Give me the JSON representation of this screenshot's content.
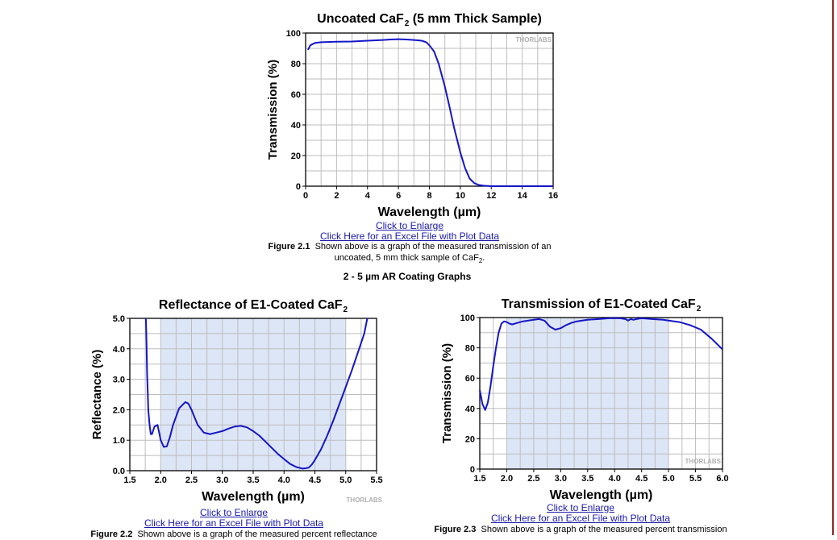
{
  "section_heading": "2 - 5 µm AR Coating Graphs",
  "watermark": "THORLABS",
  "figures": [
    {
      "enlarge_link": "Click to Enlarge",
      "excel_link": "Click Here for an Excel File with Plot Data",
      "caption_label": "Figure 2.1",
      "caption_text_1": "Shown above is a graph of the measured transmission of an",
      "caption_text_2": "uncoated, 5 mm thick sample of CaF",
      "caption_sub": "2",
      "caption_end": "."
    },
    {
      "enlarge_link": "Click to Enlarge",
      "excel_link": "Click Here for an Excel File with Plot Data",
      "caption_label": "Figure 2.2",
      "caption_text_1": "Shown above is a graph of the measured percent reflectance"
    },
    {
      "enlarge_link": "Click to Enlarge",
      "excel_link": "Click Here for an Excel File with Plot Data",
      "caption_label": "Figure 2.3",
      "caption_text_1": "Shown above is a graph of the measured percent transmission"
    }
  ],
  "colors": {
    "line": "#1515c8",
    "band": "#dde6f6",
    "grid": "#bdbdbd",
    "watermark": "#b0b0b0"
  },
  "chart_data": [
    {
      "type": "line",
      "title": "Uncoated CaF",
      "title_sub": "2",
      "title_suffix": " (5 mm  Thick Sample)",
      "xlabel": "Wavelength (µm)",
      "ylabel": "Transmission (%)",
      "xlim": [
        0,
        16
      ],
      "ylim": [
        0,
        100
      ],
      "xticks": [
        0,
        2,
        4,
        6,
        8,
        10,
        12,
        14,
        16
      ],
      "xtick_labels": [
        "0",
        "2",
        "4",
        "6",
        "8",
        "10",
        "12",
        "14",
        "16"
      ],
      "yticks": [
        0,
        20,
        40,
        60,
        80,
        100
      ],
      "ytick_labels": [
        "0",
        "20",
        "40",
        "60",
        "80",
        "100"
      ],
      "grid": true,
      "x": [
        0.15,
        0.3,
        0.6,
        1,
        2,
        3,
        4,
        5,
        5.5,
        6,
        6.5,
        7,
        7.5,
        7.8,
        8,
        8.3,
        8.6,
        9,
        9.3,
        9.6,
        10,
        10.3,
        10.6,
        10.9,
        11.2,
        11.5,
        11.8,
        12,
        13,
        14,
        15,
        16
      ],
      "y": [
        89,
        92,
        93.5,
        94,
        94.3,
        94.5,
        95,
        95.5,
        95.8,
        96,
        95.8,
        95.5,
        95,
        94,
        92,
        88,
        80,
        65,
        52,
        38,
        22,
        12,
        5,
        2,
        0.8,
        0.3,
        0.1,
        0,
        0,
        0,
        0,
        0
      ]
    },
    {
      "type": "line",
      "title": "Reflectance of E1-Coated CaF",
      "title_sub": "2",
      "title_suffix": "",
      "xlabel": "Wavelength (µm)",
      "ylabel": "Reflectance (%)",
      "xlim": [
        1.5,
        5.5
      ],
      "ylim": [
        0,
        5
      ],
      "xticks": [
        1.5,
        2,
        2.5,
        3,
        3.5,
        4,
        4.5,
        5,
        5.5
      ],
      "xtick_labels": [
        "1.5",
        "2.0",
        "2.5",
        "3.0",
        "3.5",
        "4.0",
        "4.5",
        "5.0",
        "5.5"
      ],
      "yticks": [
        0,
        1,
        2,
        3,
        4,
        5
      ],
      "ytick_labels": [
        "0.0",
        "1.0",
        "2.0",
        "3.0",
        "4.0",
        "5.0"
      ],
      "grid": true,
      "band": [
        2.0,
        5.0
      ],
      "x": [
        1.76,
        1.77,
        1.78,
        1.79,
        1.8,
        1.82,
        1.84,
        1.86,
        1.9,
        1.95,
        2.0,
        2.05,
        2.1,
        2.15,
        2.2,
        2.3,
        2.4,
        2.45,
        2.5,
        2.55,
        2.6,
        2.7,
        2.8,
        2.9,
        3.0,
        3.1,
        3.2,
        3.3,
        3.4,
        3.5,
        3.6,
        3.7,
        3.8,
        3.9,
        4.0,
        4.1,
        4.2,
        4.3,
        4.35,
        4.4,
        4.45,
        4.5,
        4.6,
        4.7,
        4.8,
        4.9,
        5.0,
        5.1,
        5.2,
        5.3,
        5.35
      ],
      "y": [
        5.0,
        4.2,
        3.2,
        2.6,
        2.0,
        1.5,
        1.2,
        1.2,
        1.45,
        1.5,
        1.0,
        0.78,
        0.8,
        1.1,
        1.5,
        2.05,
        2.25,
        2.2,
        2.0,
        1.75,
        1.5,
        1.25,
        1.2,
        1.25,
        1.3,
        1.38,
        1.45,
        1.47,
        1.42,
        1.3,
        1.15,
        0.95,
        0.75,
        0.55,
        0.38,
        0.22,
        0.12,
        0.07,
        0.08,
        0.1,
        0.2,
        0.35,
        0.7,
        1.15,
        1.65,
        2.2,
        2.75,
        3.3,
        3.9,
        4.5,
        5.0
      ]
    },
    {
      "type": "line",
      "title": "Transmission of E1-Coated CaF",
      "title_sub": "2",
      "title_suffix": "",
      "xlabel": "Wavelength (µm)",
      "ylabel": "Transmission (%)",
      "xlim": [
        1.5,
        6.0
      ],
      "ylim": [
        0,
        100
      ],
      "xticks": [
        1.5,
        2,
        2.5,
        3,
        3.5,
        4,
        4.5,
        5,
        5.5,
        6
      ],
      "xtick_labels": [
        "1.5",
        "2.0",
        "2.5",
        "3.0",
        "3.5",
        "4.0",
        "4.5",
        "5.0",
        "5.5",
        "6.0"
      ],
      "yticks": [
        0,
        20,
        40,
        60,
        80,
        100
      ],
      "ytick_labels": [
        "0",
        "20",
        "40",
        "60",
        "80",
        "100"
      ],
      "grid": true,
      "band": [
        2.0,
        5.0
      ],
      "x": [
        1.5,
        1.55,
        1.6,
        1.65,
        1.7,
        1.75,
        1.8,
        1.85,
        1.9,
        1.95,
        2.0,
        2.05,
        2.1,
        2.2,
        2.3,
        2.4,
        2.5,
        2.6,
        2.7,
        2.8,
        2.9,
        3.0,
        3.1,
        3.2,
        3.3,
        3.5,
        3.7,
        3.9,
        4.1,
        4.2,
        4.25,
        4.3,
        4.35,
        4.4,
        4.5,
        4.7,
        4.9,
        5.0,
        5.2,
        5.4,
        5.6,
        5.8,
        6.0
      ],
      "y": [
        52,
        43,
        39,
        44,
        55,
        68,
        80,
        90,
        96,
        97.5,
        97,
        96,
        95.5,
        96.5,
        97.5,
        98,
        98.5,
        99,
        98,
        94,
        92,
        93,
        95,
        96.5,
        97.5,
        98.5,
        99,
        99.5,
        99.5,
        99,
        98,
        99,
        98.5,
        99,
        99.5,
        99,
        98.5,
        98,
        97,
        95,
        92,
        86,
        79
      ]
    }
  ]
}
